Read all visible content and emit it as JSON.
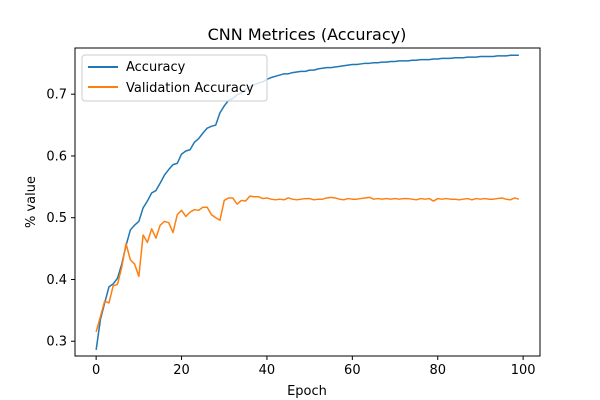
{
  "chart_data": {
    "type": "line",
    "title": "CNN Metrices (Accuracy)",
    "xlabel": "Epoch",
    "ylabel": "% value",
    "xlim": [
      -4.95,
      103.95
    ],
    "ylim": [
      0.2761,
      0.7748
    ],
    "xticks": [
      0,
      20,
      40,
      60,
      80,
      100
    ],
    "yticks": [
      0.3,
      0.4,
      0.5,
      0.6,
      0.7
    ],
    "grid": false,
    "legend_position": "top-left",
    "series": [
      {
        "name": "Accuracy",
        "color": "#1f77b4",
        "x": [
          0,
          1,
          2,
          3,
          4,
          5,
          6,
          7,
          8,
          9,
          10,
          11,
          12,
          13,
          14,
          15,
          16,
          17,
          18,
          19,
          20,
          21,
          22,
          23,
          24,
          25,
          26,
          27,
          28,
          29,
          30,
          31,
          32,
          33,
          34,
          35,
          36,
          37,
          38,
          39,
          40,
          41,
          42,
          43,
          44,
          45,
          46,
          47,
          48,
          49,
          50,
          51,
          52,
          53,
          54,
          55,
          56,
          57,
          58,
          59,
          60,
          61,
          62,
          63,
          64,
          65,
          66,
          67,
          68,
          69,
          70,
          71,
          72,
          73,
          74,
          75,
          76,
          77,
          78,
          79,
          80,
          81,
          82,
          83,
          84,
          85,
          86,
          87,
          88,
          89,
          90,
          91,
          92,
          93,
          94,
          95,
          96,
          97,
          98,
          99
        ],
        "y": [
          0.286,
          0.335,
          0.362,
          0.388,
          0.393,
          0.402,
          0.425,
          0.455,
          0.48,
          0.488,
          0.494,
          0.516,
          0.527,
          0.54,
          0.544,
          0.556,
          0.569,
          0.578,
          0.586,
          0.588,
          0.603,
          0.608,
          0.61,
          0.622,
          0.628,
          0.637,
          0.645,
          0.648,
          0.65,
          0.67,
          0.681,
          0.69,
          0.693,
          0.699,
          0.702,
          0.708,
          0.712,
          0.715,
          0.718,
          0.72,
          0.724,
          0.727,
          0.729,
          0.731,
          0.733,
          0.733,
          0.735,
          0.736,
          0.737,
          0.737,
          0.739,
          0.739,
          0.741,
          0.742,
          0.743,
          0.743,
          0.744,
          0.745,
          0.746,
          0.747,
          0.748,
          0.748,
          0.749,
          0.75,
          0.75,
          0.751,
          0.751,
          0.752,
          0.752,
          0.753,
          0.753,
          0.754,
          0.754,
          0.754,
          0.755,
          0.755,
          0.756,
          0.756,
          0.756,
          0.757,
          0.757,
          0.758,
          0.758,
          0.758,
          0.759,
          0.759,
          0.759,
          0.76,
          0.76,
          0.76,
          0.761,
          0.761,
          0.761,
          0.761,
          0.762,
          0.762,
          0.762,
          0.763,
          0.763,
          0.763
        ]
      },
      {
        "name": "Validation Accuracy",
        "color": "#ff7f0e",
        "x": [
          0,
          1,
          2,
          3,
          4,
          5,
          6,
          7,
          8,
          9,
          10,
          11,
          12,
          13,
          14,
          15,
          16,
          17,
          18,
          19,
          20,
          21,
          22,
          23,
          24,
          25,
          26,
          27,
          28,
          29,
          30,
          31,
          32,
          33,
          34,
          35,
          36,
          37,
          38,
          39,
          40,
          41,
          42,
          43,
          44,
          45,
          46,
          47,
          48,
          49,
          50,
          51,
          52,
          53,
          54,
          55,
          56,
          57,
          58,
          59,
          60,
          61,
          62,
          63,
          64,
          65,
          66,
          67,
          68,
          69,
          70,
          71,
          72,
          73,
          74,
          75,
          76,
          77,
          78,
          79,
          80,
          81,
          82,
          83,
          84,
          85,
          86,
          87,
          88,
          89,
          90,
          91,
          92,
          93,
          94,
          95,
          96,
          97,
          98,
          99
        ],
        "y": [
          0.315,
          0.34,
          0.365,
          0.362,
          0.39,
          0.392,
          0.42,
          0.458,
          0.432,
          0.425,
          0.405,
          0.472,
          0.46,
          0.482,
          0.467,
          0.488,
          0.494,
          0.492,
          0.476,
          0.505,
          0.512,
          0.502,
          0.509,
          0.513,
          0.512,
          0.517,
          0.517,
          0.505,
          0.5,
          0.496,
          0.528,
          0.532,
          0.532,
          0.522,
          0.528,
          0.527,
          0.535,
          0.534,
          0.534,
          0.531,
          0.532,
          0.53,
          0.529,
          0.53,
          0.529,
          0.532,
          0.53,
          0.529,
          0.53,
          0.531,
          0.531,
          0.529,
          0.53,
          0.53,
          0.532,
          0.533,
          0.532,
          0.53,
          0.529,
          0.531,
          0.53,
          0.53,
          0.531,
          0.532,
          0.533,
          0.53,
          0.531,
          0.53,
          0.531,
          0.53,
          0.531,
          0.53,
          0.531,
          0.531,
          0.53,
          0.529,
          0.531,
          0.53,
          0.531,
          0.527,
          0.531,
          0.53,
          0.531,
          0.53,
          0.53,
          0.529,
          0.53,
          0.531,
          0.529,
          0.531,
          0.53,
          0.531,
          0.53,
          0.53,
          0.531,
          0.532,
          0.53,
          0.529,
          0.532,
          0.53
        ]
      }
    ]
  }
}
